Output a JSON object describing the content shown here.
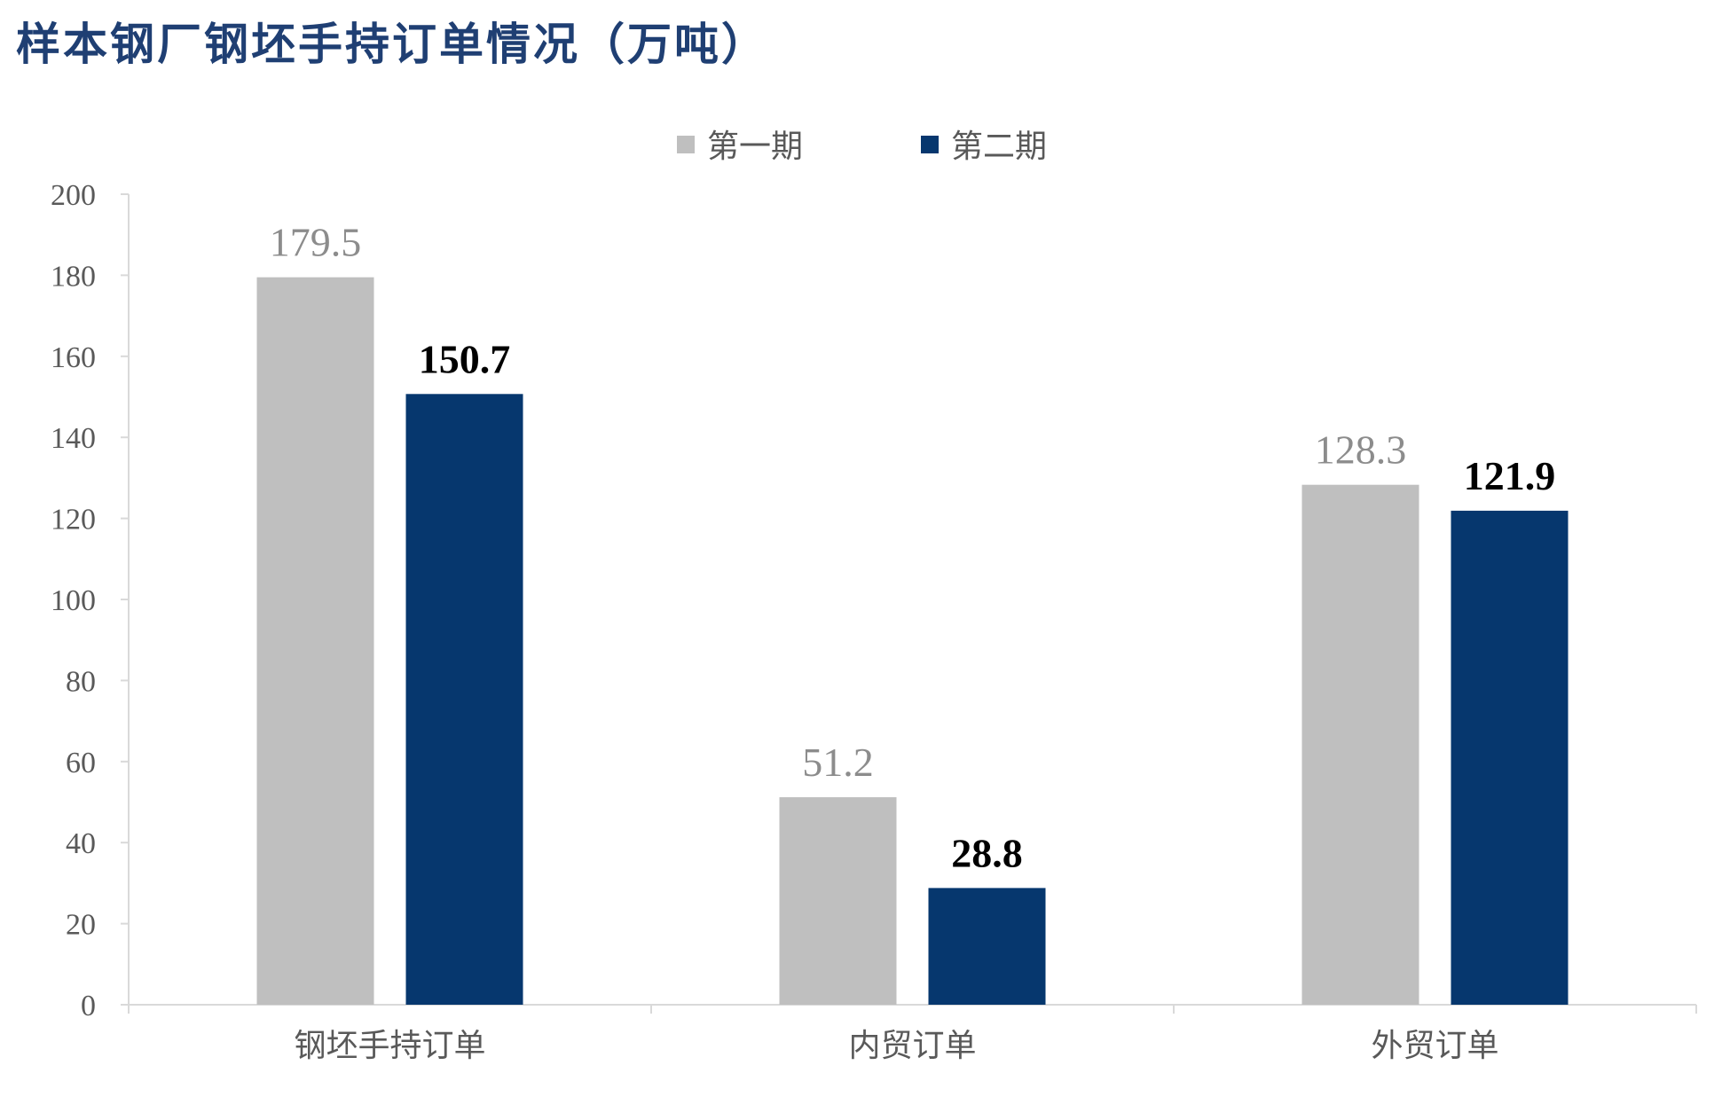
{
  "header": {
    "title": "样本钢厂钢坯手持订单情况（万吨）"
  },
  "colors": {
    "series1": "#bfbfbf",
    "series2": "#06376e",
    "title": "#1f3f73",
    "axis": "#d9d9d9"
  },
  "chart_data": {
    "type": "bar",
    "title": "样本钢厂钢坯手持订单情况（万吨）",
    "categories": [
      "钢坯手持订单",
      "内贸订单",
      "外贸订单"
    ],
    "series": [
      {
        "name": "第一期",
        "values": [
          179.5,
          51.2,
          128.3
        ]
      },
      {
        "name": "第二期",
        "values": [
          150.7,
          28.8,
          121.9
        ]
      }
    ],
    "ylim": [
      0,
      200
    ],
    "yticks": [
      0,
      20,
      40,
      60,
      80,
      100,
      120,
      140,
      160,
      180,
      200
    ],
    "grid": false,
    "legend_position": "top-center",
    "xlabel": "",
    "ylabel": ""
  }
}
